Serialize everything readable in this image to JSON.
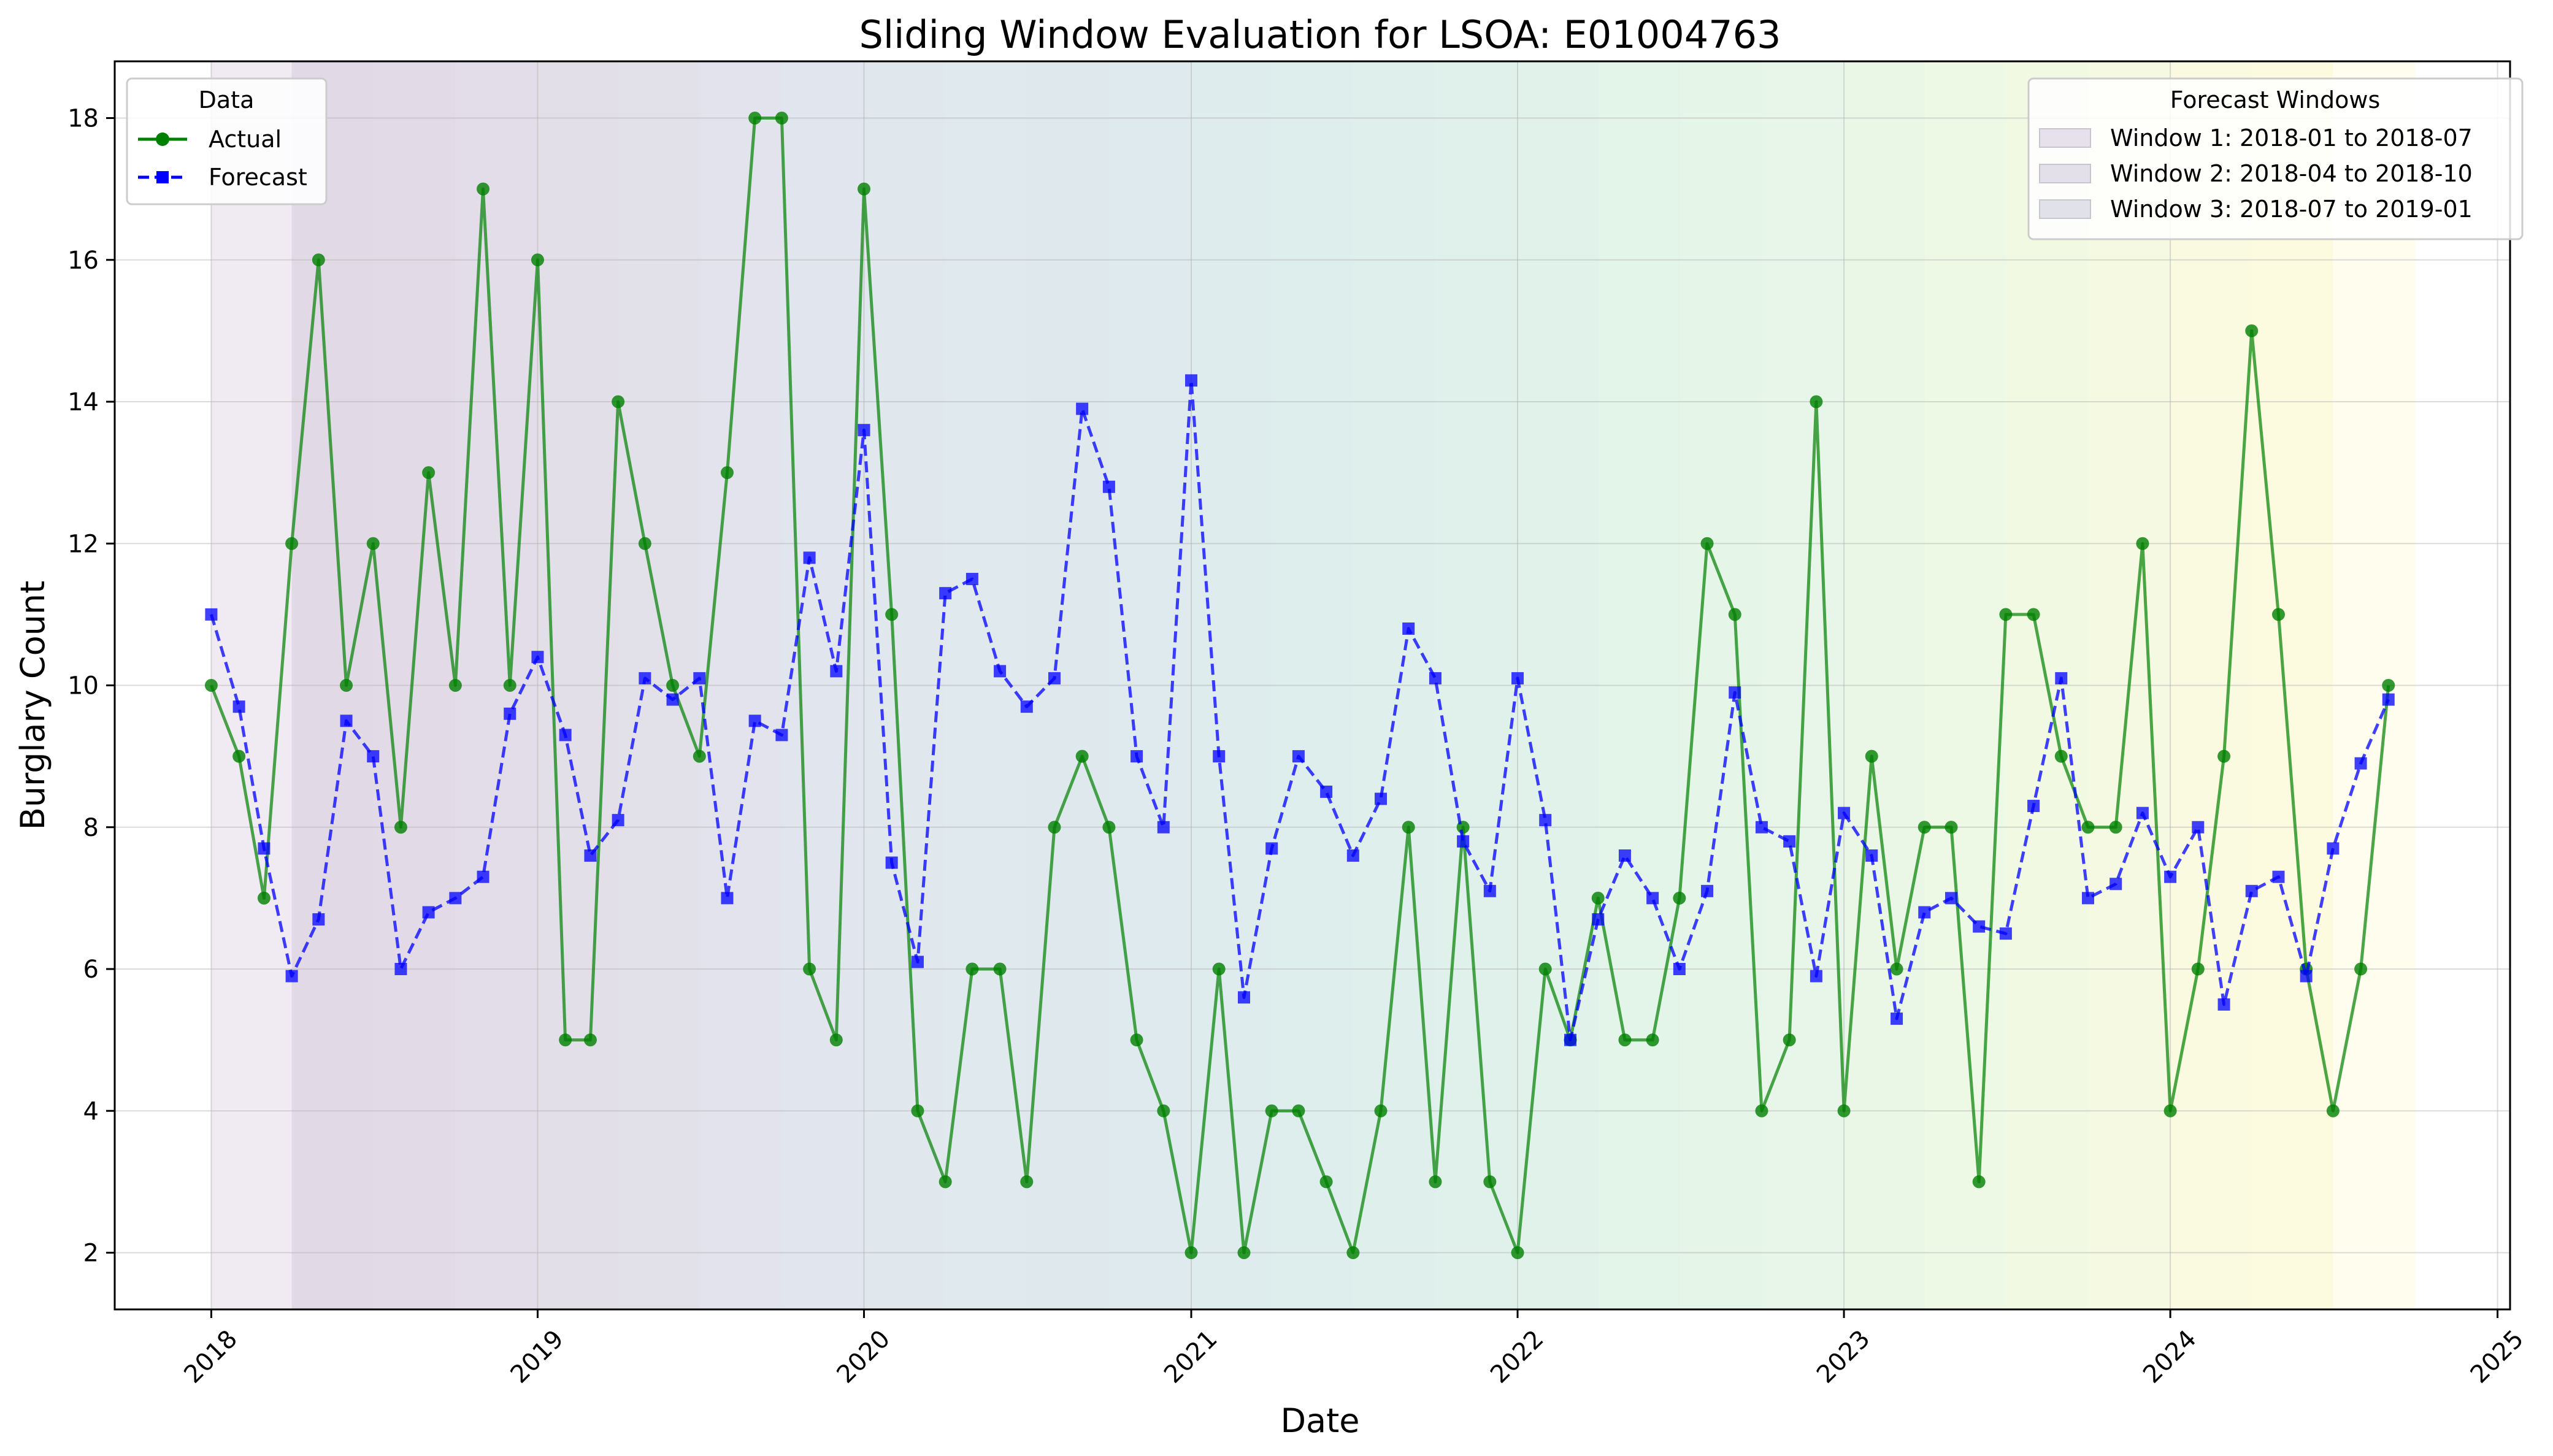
{
  "chart_data": {
    "type": "line",
    "title": "Sliding Window Evaluation for LSOA: E01004763",
    "xlabel": "Date",
    "ylabel": "Burglary Count",
    "x_ticks": [
      "2018",
      "2019",
      "2020",
      "2021",
      "2022",
      "2023",
      "2024",
      "2025"
    ],
    "y_ticks": [
      2,
      4,
      6,
      8,
      10,
      12,
      14,
      16,
      18
    ],
    "xlim": [
      "2017-09-15",
      "2025-01-15"
    ],
    "ylim": [
      1.2,
      18.8
    ],
    "grid": true,
    "legend_data": {
      "title": "Data",
      "placement": "upper-left",
      "entries": [
        {
          "name": "Actual",
          "color": "#008000",
          "marker": "circle",
          "style": "solid"
        },
        {
          "name": "Forecast",
          "color": "#0000ff",
          "marker": "square",
          "style": "dashed"
        }
      ]
    },
    "legend_windows": {
      "title": "Forecast Windows",
      "placement": "upper-right",
      "entries": [
        "Window 1: 2018-01 to 2018-07",
        "Window 2: 2018-04 to 2018-10",
        "Window 3: 2018-07 to 2019-01"
      ]
    },
    "windows_note": "Sliding 6-month forecast windows shaded from 2018-01 to 2024-10, colored purple to yellow",
    "window_starts": [
      "2018-01",
      "2018-04",
      "2018-07",
      "2018-10",
      "2019-01",
      "2019-04",
      "2019-07",
      "2019-10",
      "2020-01",
      "2020-04",
      "2020-07",
      "2020-10",
      "2021-01",
      "2021-04",
      "2021-07",
      "2021-10",
      "2022-01",
      "2022-04",
      "2022-07",
      "2022-10",
      "2023-01",
      "2023-04",
      "2023-07",
      "2023-10",
      "2024-01",
      "2024-04"
    ],
    "series": [
      {
        "name": "Actual",
        "color": "#008000",
        "x": [
          "2018-01",
          "2018-02",
          "2018-03",
          "2018-04",
          "2018-05",
          "2018-06",
          "2018-07",
          "2018-08",
          "2018-09",
          "2018-10",
          "2018-11",
          "2018-12",
          "2019-01",
          "2019-02",
          "2019-03",
          "2019-04",
          "2019-05",
          "2019-06",
          "2019-07",
          "2019-08",
          "2019-09",
          "2019-10",
          "2019-11",
          "2019-12",
          "2020-01",
          "2020-02",
          "2020-03",
          "2020-04",
          "2020-05",
          "2020-06",
          "2020-07",
          "2020-08",
          "2020-09",
          "2020-10",
          "2020-11",
          "2020-12",
          "2021-01",
          "2021-02",
          "2021-03",
          "2021-04",
          "2021-05",
          "2021-06",
          "2021-07",
          "2021-08",
          "2021-09",
          "2021-10",
          "2021-11",
          "2021-12",
          "2022-01",
          "2022-02",
          "2022-03",
          "2022-04",
          "2022-05",
          "2022-06",
          "2022-07",
          "2022-08",
          "2022-09",
          "2022-10",
          "2022-11",
          "2022-12",
          "2023-01",
          "2023-02",
          "2023-03",
          "2023-04",
          "2023-05",
          "2023-06",
          "2023-07",
          "2023-08",
          "2023-09",
          "2023-10",
          "2023-11",
          "2023-12",
          "2024-01",
          "2024-02",
          "2024-03",
          "2024-04",
          "2024-05",
          "2024-06",
          "2024-07",
          "2024-08",
          "2024-09"
        ],
        "values": [
          10,
          9,
          7,
          12,
          16,
          10,
          12,
          8,
          13,
          10,
          17,
          10,
          16,
          5,
          5,
          14,
          12,
          10,
          9,
          13,
          18,
          18,
          6,
          5,
          17,
          11,
          4,
          3,
          6,
          6,
          3,
          8,
          9,
          8,
          5,
          4,
          2,
          6,
          2,
          4,
          4,
          3,
          2,
          4,
          8,
          3,
          8,
          3,
          2,
          6,
          5,
          7,
          5,
          5,
          7,
          12,
          11,
          4,
          5,
          14,
          4,
          9,
          6,
          8,
          8,
          3,
          11,
          11,
          9,
          8,
          8,
          12,
          4,
          6,
          9,
          15,
          11,
          6,
          4,
          6,
          10
        ]
      },
      {
        "name": "Forecast",
        "color": "#0000ff",
        "x": [
          "2018-01",
          "2018-02",
          "2018-03",
          "2018-04",
          "2018-05",
          "2018-06",
          "2018-07",
          "2018-08",
          "2018-09",
          "2018-10",
          "2018-11",
          "2018-12",
          "2019-01",
          "2019-02",
          "2019-03",
          "2019-04",
          "2019-05",
          "2019-06",
          "2019-07",
          "2019-08",
          "2019-09",
          "2019-10",
          "2019-11",
          "2019-12",
          "2020-01",
          "2020-02",
          "2020-03",
          "2020-04",
          "2020-05",
          "2020-06",
          "2020-07",
          "2020-08",
          "2020-09",
          "2020-10",
          "2020-11",
          "2020-12",
          "2021-01",
          "2021-02",
          "2021-03",
          "2021-04",
          "2021-05",
          "2021-06",
          "2021-07",
          "2021-08",
          "2021-09",
          "2021-10",
          "2021-11",
          "2021-12",
          "2022-01",
          "2022-02",
          "2022-03",
          "2022-04",
          "2022-05",
          "2022-06",
          "2022-07",
          "2022-08",
          "2022-09",
          "2022-10",
          "2022-11",
          "2022-12",
          "2023-01",
          "2023-02",
          "2023-03",
          "2023-04",
          "2023-05",
          "2023-06",
          "2023-07",
          "2023-08",
          "2023-09",
          "2023-10",
          "2023-11",
          "2023-12",
          "2024-01",
          "2024-02",
          "2024-03",
          "2024-04",
          "2024-05",
          "2024-06",
          "2024-07",
          "2024-08",
          "2024-09"
        ],
        "values": [
          11,
          9.7,
          7.7,
          5.9,
          6.7,
          9.5,
          9,
          6,
          6.8,
          7,
          7.3,
          9.6,
          10.4,
          9.3,
          7.6,
          8.1,
          10.1,
          9.8,
          10.1,
          7,
          9.5,
          9.3,
          11.8,
          10.2,
          13.6,
          7.5,
          6.1,
          11.3,
          11.5,
          10.2,
          9.7,
          10.1,
          13.9,
          12.8,
          9,
          8,
          14.3,
          9,
          5.6,
          7.7,
          9,
          8.5,
          7.6,
          8.4,
          10.8,
          10.1,
          7.8,
          7.1,
          10.1,
          8.1,
          5,
          6.7,
          7.6,
          7,
          6,
          7.1,
          9.9,
          8,
          7.8,
          5.9,
          8.2,
          7.6,
          5.3,
          6.8,
          7,
          6.6,
          6.5,
          8.3,
          10.1,
          7,
          7.2,
          8.2,
          7.3,
          8,
          5.5,
          7.1,
          7.3,
          5.9,
          7.7,
          8.9,
          9.8
        ]
      }
    ]
  }
}
